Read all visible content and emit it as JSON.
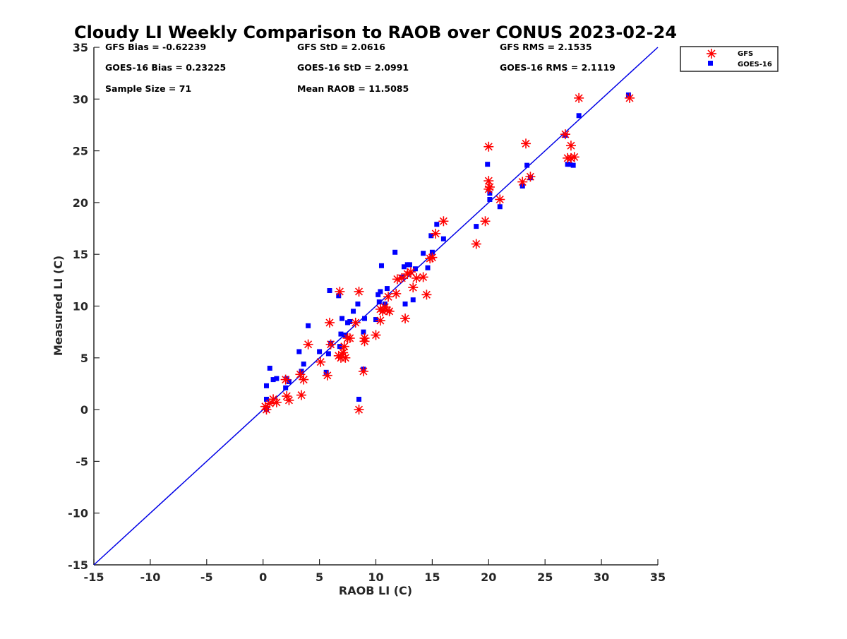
{
  "chart_data": {
    "type": "scatter",
    "title": "Cloudy LI Weekly Comparison to RAOB over CONUS 2023-02-24",
    "xlabel": "RAOB LI (C)",
    "ylabel": "Measured LI (C)",
    "xlim": [
      -15,
      35
    ],
    "ylim": [
      -15,
      35
    ],
    "xticks": [
      -15,
      -10,
      -5,
      0,
      5,
      10,
      15,
      20,
      25,
      30,
      35
    ],
    "yticks": [
      -15,
      -10,
      -5,
      0,
      5,
      10,
      15,
      20,
      25,
      30,
      35
    ],
    "grid": false,
    "legend_position": "top-right outside",
    "reference_line": {
      "from": [
        -15,
        -15
      ],
      "to": [
        35,
        35
      ],
      "color": "#0000e6"
    },
    "stats": [
      [
        "GFS Bias = -0.62239",
        "GFS StD = 2.0616",
        "GFS RMS = 2.1535"
      ],
      [
        "GOES-16 Bias = 0.23225",
        "GOES-16 StD = 2.0991",
        "GOES-16 RMS = 2.1119"
      ],
      [
        "Sample Size = 71",
        "Mean RAOB = 11.5085"
      ]
    ],
    "series": [
      {
        "name": "GFS",
        "marker": "asterisk",
        "color": "#ff0000",
        "points": [
          [
            0.2,
            0.3
          ],
          [
            0.3,
            0.0
          ],
          [
            0.6,
            0.6
          ],
          [
            0.9,
            1.0
          ],
          [
            1.2,
            0.7
          ],
          [
            2.0,
            2.9
          ],
          [
            2.1,
            1.3
          ],
          [
            2.3,
            0.9
          ],
          [
            3.3,
            3.4
          ],
          [
            3.4,
            1.4
          ],
          [
            3.6,
            2.9
          ],
          [
            4.0,
            6.3
          ],
          [
            5.1,
            4.6
          ],
          [
            5.7,
            3.3
          ],
          [
            5.9,
            8.4
          ],
          [
            6.0,
            6.3
          ],
          [
            6.7,
            5.2
          ],
          [
            6.8,
            11.4
          ],
          [
            6.9,
            5.0
          ],
          [
            7.1,
            5.5
          ],
          [
            7.2,
            6.1
          ],
          [
            7.3,
            5.0
          ],
          [
            7.5,
            6.9
          ],
          [
            7.7,
            6.9
          ],
          [
            8.2,
            8.4
          ],
          [
            8.5,
            11.4
          ],
          [
            8.5,
            0.0
          ],
          [
            8.9,
            3.7
          ],
          [
            9.0,
            6.6
          ],
          [
            9.0,
            6.9
          ],
          [
            10.0,
            7.2
          ],
          [
            10.4,
            8.6
          ],
          [
            10.4,
            9.7
          ],
          [
            10.6,
            9.5
          ],
          [
            10.8,
            9.9
          ],
          [
            11.0,
            9.6
          ],
          [
            11.1,
            10.9
          ],
          [
            11.2,
            9.5
          ],
          [
            11.8,
            11.2
          ],
          [
            11.9,
            12.6
          ],
          [
            12.3,
            12.7
          ],
          [
            12.6,
            8.8
          ],
          [
            12.8,
            13.1
          ],
          [
            13.1,
            13.3
          ],
          [
            13.3,
            11.8
          ],
          [
            13.6,
            12.7
          ],
          [
            14.2,
            12.8
          ],
          [
            14.5,
            11.1
          ],
          [
            14.8,
            14.6
          ],
          [
            15.0,
            14.7
          ],
          [
            15.3,
            17.0
          ],
          [
            16.0,
            18.2
          ],
          [
            18.9,
            16.0
          ],
          [
            19.7,
            18.2
          ],
          [
            20.0,
            25.4
          ],
          [
            20.0,
            21.3
          ],
          [
            20.0,
            22.1
          ],
          [
            20.1,
            21.5
          ],
          [
            21.0,
            20.3
          ],
          [
            23.0,
            22.0
          ],
          [
            23.3,
            25.7
          ],
          [
            23.7,
            22.5
          ],
          [
            26.8,
            26.6
          ],
          [
            27.0,
            24.3
          ],
          [
            27.3,
            24.3
          ],
          [
            27.3,
            25.5
          ],
          [
            27.6,
            24.4
          ],
          [
            28.0,
            30.1
          ],
          [
            32.5,
            30.1
          ]
        ]
      },
      {
        "name": "GOES-16",
        "marker": "square",
        "color": "#0000ff",
        "points": [
          [
            0.3,
            2.3
          ],
          [
            0.3,
            1.0
          ],
          [
            0.3,
            0.0
          ],
          [
            0.6,
            4.0
          ],
          [
            0.9,
            2.9
          ],
          [
            1.2,
            3.0
          ],
          [
            2.0,
            2.1
          ],
          [
            2.1,
            3.0
          ],
          [
            2.3,
            2.7
          ],
          [
            3.2,
            5.6
          ],
          [
            3.4,
            3.7
          ],
          [
            3.6,
            4.4
          ],
          [
            4.0,
            8.1
          ],
          [
            5.0,
            5.6
          ],
          [
            5.6,
            3.6
          ],
          [
            5.8,
            5.4
          ],
          [
            5.9,
            11.5
          ],
          [
            6.0,
            6.4
          ],
          [
            6.7,
            11.0
          ],
          [
            6.8,
            6.1
          ],
          [
            6.9,
            7.3
          ],
          [
            7.0,
            8.8
          ],
          [
            7.3,
            7.2
          ],
          [
            7.5,
            8.4
          ],
          [
            7.7,
            8.5
          ],
          [
            8.0,
            9.5
          ],
          [
            8.4,
            10.2
          ],
          [
            8.5,
            1.0
          ],
          [
            8.9,
            7.5
          ],
          [
            8.9,
            3.9
          ],
          [
            9.0,
            8.8
          ],
          [
            10.0,
            8.7
          ],
          [
            10.2,
            11.1
          ],
          [
            10.3,
            10.4
          ],
          [
            10.4,
            11.4
          ],
          [
            10.5,
            13.9
          ],
          [
            10.8,
            10.2
          ],
          [
            11.0,
            11.7
          ],
          [
            11.7,
            15.2
          ],
          [
            12.3,
            12.8
          ],
          [
            12.5,
            13.8
          ],
          [
            12.6,
            10.2
          ],
          [
            12.8,
            14.0
          ],
          [
            13.0,
            14.0
          ],
          [
            13.3,
            10.6
          ],
          [
            13.5,
            13.6
          ],
          [
            14.2,
            15.1
          ],
          [
            14.6,
            13.7
          ],
          [
            14.9,
            16.8
          ],
          [
            15.0,
            15.2
          ],
          [
            15.4,
            17.9
          ],
          [
            16.0,
            16.5
          ],
          [
            18.9,
            17.7
          ],
          [
            19.9,
            23.7
          ],
          [
            20.1,
            20.9
          ],
          [
            20.1,
            20.3
          ],
          [
            21.0,
            19.6
          ],
          [
            23.0,
            21.6
          ],
          [
            23.4,
            23.6
          ],
          [
            23.7,
            22.4
          ],
          [
            26.8,
            26.5
          ],
          [
            27.0,
            23.7
          ],
          [
            27.2,
            23.7
          ],
          [
            27.5,
            23.6
          ],
          [
            28.0,
            28.4
          ],
          [
            32.4,
            30.4
          ]
        ]
      }
    ]
  }
}
